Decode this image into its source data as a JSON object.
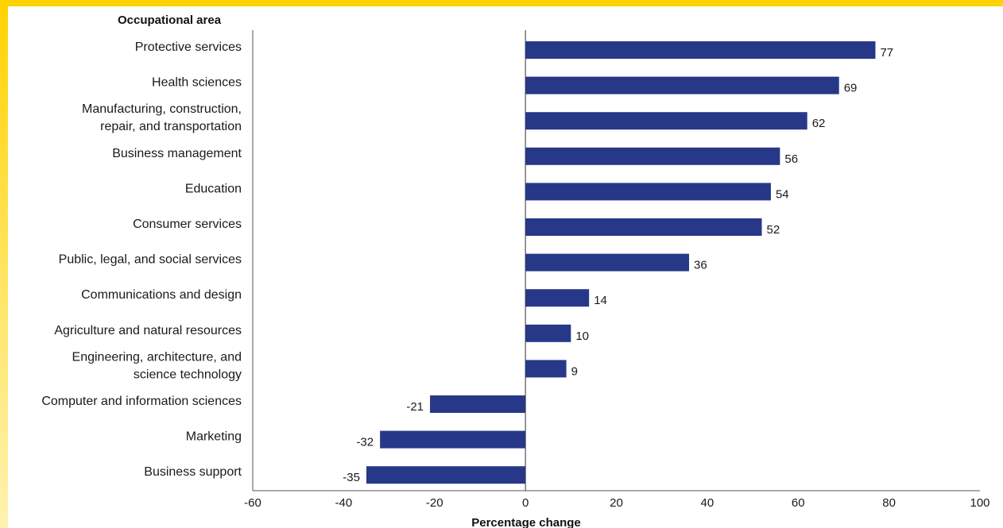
{
  "chart_data": {
    "type": "bar",
    "orientation": "horizontal",
    "ylabel": "Occupational area",
    "xlabel": "Percentage change",
    "xlim": [
      -60,
      100
    ],
    "xticks": [
      -60,
      -40,
      -20,
      0,
      20,
      40,
      60,
      80,
      100
    ],
    "grid": false,
    "categories": [
      "Protective services",
      "Health sciences",
      "Manufacturing, construction, repair, and transportation",
      "Business management",
      "Education",
      "Consumer services",
      "Public, legal, and social services",
      "Communications and design",
      "Agriculture and natural resources",
      "Engineering, architecture, and science technology",
      "Computer and information sciences",
      "Marketing",
      "Business support"
    ],
    "category_lines": [
      [
        "Protective services"
      ],
      [
        "Health sciences"
      ],
      [
        "Manufacturing, construction,",
        "repair, and transportation"
      ],
      [
        "Business management"
      ],
      [
        "Education"
      ],
      [
        "Consumer services"
      ],
      [
        "Public, legal, and social services"
      ],
      [
        "Communications and design"
      ],
      [
        "Agriculture and natural resources"
      ],
      [
        "Engineering, architecture, and",
        "science technology"
      ],
      [
        "Computer and information sciences"
      ],
      [
        "Marketing"
      ],
      [
        "Business support"
      ]
    ],
    "values": [
      77,
      69,
      62,
      56,
      54,
      52,
      36,
      14,
      10,
      9,
      -21,
      -32,
      -35
    ],
    "bar_color": "#283888"
  }
}
